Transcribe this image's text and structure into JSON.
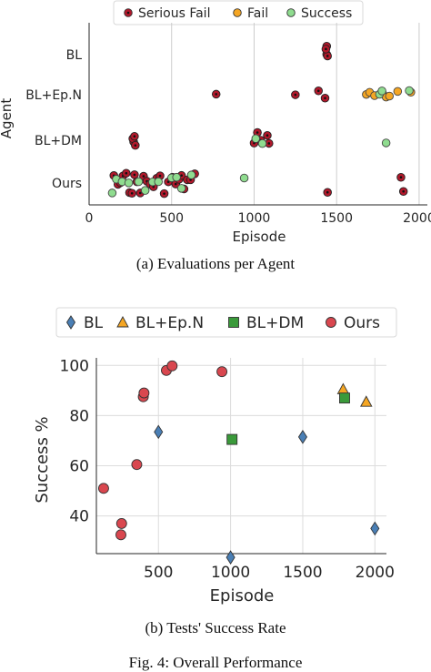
{
  "chart_data": [
    {
      "type": "scatter",
      "title": "",
      "caption": "(a) Evaluations per Agent",
      "xlabel": "Episode",
      "ylabel": "Agent",
      "xlim": [
        0,
        2050
      ],
      "xticks": [
        "0",
        "500",
        "1000",
        "1500",
        "2000"
      ],
      "categories": [
        "BL",
        "BL+Ep.N",
        "BL+DM",
        "Ours"
      ],
      "grid": "vertical",
      "legend": "top",
      "series": [
        {
          "name": "Serious Fail",
          "color": "#b2182b",
          "points": [
            {
              "agent": "BL",
              "x": 1440
            },
            {
              "agent": "BL",
              "x": 1445
            },
            {
              "agent": "BL",
              "x": 1440
            },
            {
              "agent": "BL",
              "x": 1435
            },
            {
              "agent": "BL+Ep.N",
              "x": 770
            },
            {
              "agent": "BL+Ep.N",
              "x": 1250
            },
            {
              "agent": "BL+Ep.N",
              "x": 1390
            },
            {
              "agent": "BL+Ep.N",
              "x": 1430
            },
            {
              "agent": "BL+DM",
              "x": 270
            },
            {
              "agent": "BL+DM",
              "x": 265
            },
            {
              "agent": "BL+DM",
              "x": 275
            },
            {
              "agent": "BL+DM",
              "x": 280
            },
            {
              "agent": "BL+DM",
              "x": 1000
            },
            {
              "agent": "BL+DM",
              "x": 1020
            },
            {
              "agent": "BL+DM",
              "x": 1040
            },
            {
              "agent": "BL+DM",
              "x": 1080
            },
            {
              "agent": "BL+DM",
              "x": 1090
            },
            {
              "agent": "Ours",
              "x": 150
            },
            {
              "agent": "Ours",
              "x": 175
            },
            {
              "agent": "Ours",
              "x": 190
            },
            {
              "agent": "Ours",
              "x": 205
            },
            {
              "agent": "Ours",
              "x": 225
            },
            {
              "agent": "Ours",
              "x": 245
            },
            {
              "agent": "Ours",
              "x": 260
            },
            {
              "agent": "Ours",
              "x": 275
            },
            {
              "agent": "Ours",
              "x": 290
            },
            {
              "agent": "Ours",
              "x": 310
            },
            {
              "agent": "Ours",
              "x": 330
            },
            {
              "agent": "Ours",
              "x": 350
            },
            {
              "agent": "Ours",
              "x": 370
            },
            {
              "agent": "Ours",
              "x": 390
            },
            {
              "agent": "Ours",
              "x": 410
            },
            {
              "agent": "Ours",
              "x": 430
            },
            {
              "agent": "Ours",
              "x": 455
            },
            {
              "agent": "Ours",
              "x": 480
            },
            {
              "agent": "Ours",
              "x": 505
            },
            {
              "agent": "Ours",
              "x": 525
            },
            {
              "agent": "Ours",
              "x": 545
            },
            {
              "agent": "Ours",
              "x": 560
            },
            {
              "agent": "Ours",
              "x": 575
            },
            {
              "agent": "Ours",
              "x": 595
            },
            {
              "agent": "Ours",
              "x": 615
            },
            {
              "agent": "Ours",
              "x": 640
            },
            {
              "agent": "Ours",
              "x": 1445
            },
            {
              "agent": "Ours",
              "x": 1890
            },
            {
              "agent": "Ours",
              "x": 1905
            }
          ]
        },
        {
          "name": "Fail",
          "color": "#f5a623",
          "points": [
            {
              "agent": "BL+Ep.N",
              "x": 1680
            },
            {
              "agent": "BL+Ep.N",
              "x": 1700
            },
            {
              "agent": "BL+Ep.N",
              "x": 1730
            },
            {
              "agent": "BL+Ep.N",
              "x": 1780
            },
            {
              "agent": "BL+Ep.N",
              "x": 1800
            },
            {
              "agent": "BL+Ep.N",
              "x": 1820
            },
            {
              "agent": "BL+Ep.N",
              "x": 1870
            },
            {
              "agent": "BL+Ep.N",
              "x": 1950
            }
          ]
        },
        {
          "name": "Success",
          "color": "#8fdc8f",
          "points": [
            {
              "agent": "BL+Ep.N",
              "x": 1760
            },
            {
              "agent": "BL+Ep.N",
              "x": 1775
            },
            {
              "agent": "BL+Ep.N",
              "x": 1940
            },
            {
              "agent": "BL+DM",
              "x": 1010
            },
            {
              "agent": "BL+DM",
              "x": 1050
            },
            {
              "agent": "BL+DM",
              "x": 1800
            },
            {
              "agent": "Ours",
              "x": 140
            },
            {
              "agent": "Ours",
              "x": 165
            },
            {
              "agent": "Ours",
              "x": 200
            },
            {
              "agent": "Ours",
              "x": 240
            },
            {
              "agent": "Ours",
              "x": 300
            },
            {
              "agent": "Ours",
              "x": 340
            },
            {
              "agent": "Ours",
              "x": 385
            },
            {
              "agent": "Ours",
              "x": 420
            },
            {
              "agent": "Ours",
              "x": 500
            },
            {
              "agent": "Ours",
              "x": 530
            },
            {
              "agent": "Ours",
              "x": 560
            },
            {
              "agent": "Ours",
              "x": 620
            },
            {
              "agent": "Ours",
              "x": 940
            }
          ]
        }
      ]
    },
    {
      "type": "scatter",
      "title": "",
      "caption": "(b) Tests' Success Rate",
      "xlabel": "Episode",
      "ylabel": "Success %",
      "xlim": [
        70,
        2080
      ],
      "ylim": [
        25,
        103
      ],
      "xticks": [
        500,
        1000,
        1500,
        2000
      ],
      "yticks": [
        40,
        60,
        80,
        100
      ],
      "grid": "both",
      "legend": "top",
      "series": [
        {
          "name": "BL",
          "marker": "diamond",
          "color": "#4a7fb5",
          "x": [
            500,
            1000,
            1500,
            2000
          ],
          "y": [
            73.5,
            23.5,
            71.5,
            35
          ]
        },
        {
          "name": "BL+Ep.N",
          "marker": "triangle",
          "color": "#f5a623",
          "x": [
            1780,
            1940
          ],
          "y": [
            90.5,
            85.5
          ]
        },
        {
          "name": "BL+DM",
          "marker": "square",
          "color": "#3a9a3a",
          "x": [
            1010,
            1790
          ],
          "y": [
            70.5,
            87
          ]
        },
        {
          "name": "Ours",
          "marker": "circle",
          "color": "#d9474f",
          "x": [
            120,
            240,
            245,
            350,
            395,
            400,
            555,
            595,
            940
          ],
          "y": [
            51,
            32.5,
            37,
            60.5,
            87.5,
            89,
            98,
            99.8,
            97.5
          ]
        }
      ]
    }
  ],
  "figure_caption": "Fig. 4: Overall Performance"
}
